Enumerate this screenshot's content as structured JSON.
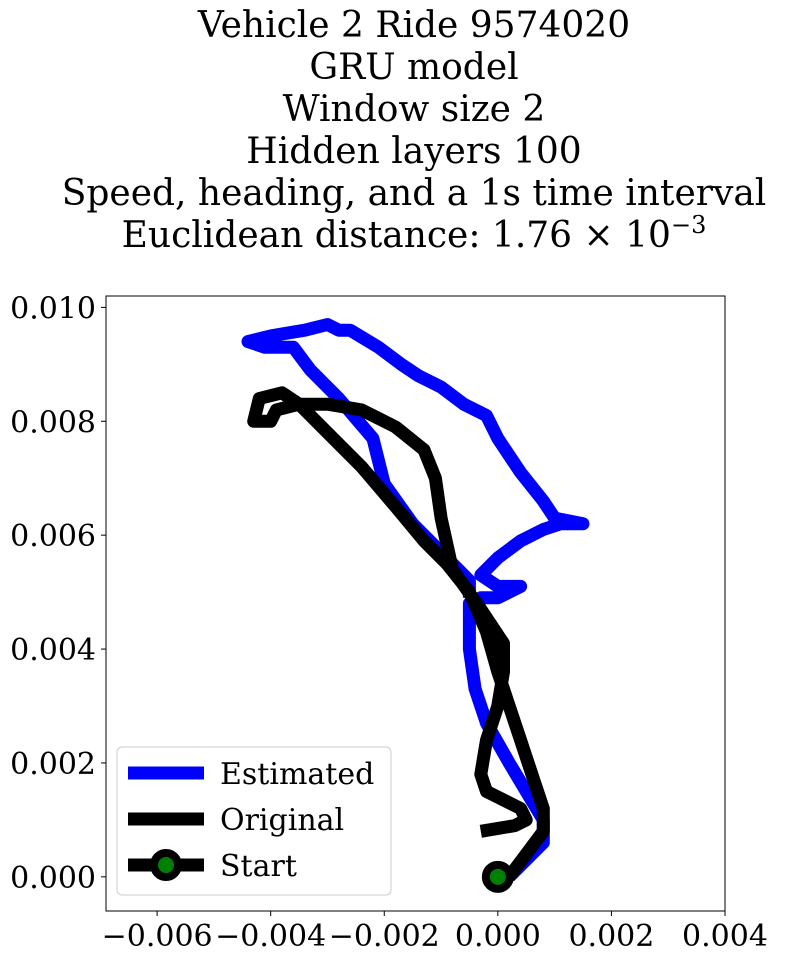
{
  "chart_data": {
    "type": "line",
    "title_lines": [
      "Vehicle 2 Ride 9574020",
      "GRU model",
      "Window size 2",
      "Hidden layers 100",
      "Speed, heading, and a 1s time interval"
    ],
    "title_distance_prefix": "Euclidean distance: 1.76",
    "title_distance_times": "×",
    "title_distance_base": "10",
    "title_distance_exponent": "−3",
    "xlim": [
      -0.0069,
      0.004
    ],
    "ylim": [
      -0.0006,
      0.0102
    ],
    "x_ticks": [
      -0.006,
      -0.004,
      -0.002,
      0.0,
      0.002,
      0.004
    ],
    "x_tick_labels": [
      "−0.006",
      "−0.004",
      "−0.002",
      "0.000",
      "0.002",
      "0.004"
    ],
    "y_ticks": [
      0.0,
      0.002,
      0.004,
      0.006,
      0.008,
      0.01
    ],
    "y_tick_labels": [
      "0.000",
      "0.002",
      "0.004",
      "0.006",
      "0.008",
      "0.010"
    ],
    "grid": false,
    "legend_position": "lower-left",
    "series": [
      {
        "name": "Estimated",
        "color": "#0000ff",
        "points": [
          [
            0.0002,
            0.0
          ],
          [
            0.0005,
            0.0003
          ],
          [
            0.0008,
            0.0006
          ],
          [
            0.0008,
            0.001
          ],
          [
            0.0005,
            0.0015
          ],
          [
            0.0002,
            0.002
          ],
          [
            -0.0002,
            0.0027
          ],
          [
            -0.0004,
            0.0033
          ],
          [
            -0.0005,
            0.004
          ],
          [
            -0.0005,
            0.0048
          ],
          [
            -0.0003,
            0.0049
          ],
          [
            0.0,
            0.0049
          ],
          [
            0.0004,
            0.0051
          ],
          [
            0.0,
            0.0051
          ],
          [
            -0.0003,
            0.0053
          ],
          [
            0.0,
            0.0056
          ],
          [
            0.0004,
            0.0059
          ],
          [
            0.0008,
            0.0061
          ],
          [
            0.0011,
            0.0062
          ],
          [
            0.0015,
            0.0062
          ],
          [
            0.001,
            0.0063
          ],
          [
            0.0008,
            0.0066
          ],
          [
            0.0004,
            0.0071
          ],
          [
            0.0,
            0.0077
          ],
          [
            -0.0002,
            0.0081
          ],
          [
            -0.0006,
            0.0083
          ],
          [
            -0.001,
            0.0086
          ],
          [
            -0.0014,
            0.0088
          ],
          [
            -0.0017,
            0.009
          ],
          [
            -0.0021,
            0.0093
          ],
          [
            -0.0026,
            0.0096
          ],
          [
            -0.0028,
            0.0096
          ],
          [
            -0.003,
            0.0097
          ],
          [
            -0.0034,
            0.0096
          ],
          [
            -0.004,
            0.0095
          ],
          [
            -0.0044,
            0.0094
          ],
          [
            -0.0041,
            0.0093
          ],
          [
            -0.0036,
            0.0093
          ],
          [
            -0.0033,
            0.0089
          ],
          [
            -0.0028,
            0.0084
          ],
          [
            -0.0022,
            0.0077
          ],
          [
            -0.002,
            0.0069
          ],
          [
            -0.0015,
            0.0062
          ],
          [
            -0.0011,
            0.0058
          ],
          [
            -0.0008,
            0.0055
          ],
          [
            -0.0005,
            0.0052
          ],
          [
            -0.0005,
            0.0049
          ]
        ]
      },
      {
        "name": "Original",
        "color": "#000000",
        "points": [
          [
            -0.0003,
            0.0008
          ],
          [
            0.0003,
            0.0009
          ],
          [
            0.0005,
            0.001
          ],
          [
            0.0004,
            0.0012
          ],
          [
            -0.0002,
            0.0015
          ],
          [
            -0.0003,
            0.0018
          ],
          [
            -0.0002,
            0.0024
          ],
          [
            0.0,
            0.003
          ],
          [
            0.0001,
            0.0036
          ],
          [
            0.0001,
            0.0041
          ],
          [
            -0.0003,
            0.0047
          ],
          [
            -0.0008,
            0.0054
          ],
          [
            -0.001,
            0.0063
          ],
          [
            -0.0011,
            0.007
          ],
          [
            -0.0013,
            0.0075
          ],
          [
            -0.0018,
            0.0079
          ],
          [
            -0.0024,
            0.0082
          ],
          [
            -0.003,
            0.0083
          ],
          [
            -0.0035,
            0.0083
          ],
          [
            -0.0039,
            0.0082
          ],
          [
            -0.004,
            0.008
          ],
          [
            -0.0043,
            0.008
          ],
          [
            -0.0042,
            0.0084
          ],
          [
            -0.0038,
            0.0085
          ],
          [
            -0.0035,
            0.0083
          ],
          [
            -0.003,
            0.0078
          ],
          [
            -0.0024,
            0.0072
          ],
          [
            -0.0018,
            0.0065
          ],
          [
            -0.0013,
            0.0059
          ],
          [
            -0.0009,
            0.0055
          ],
          [
            -0.0005,
            0.005
          ],
          [
            -0.0002,
            0.0043
          ],
          [
            0.0,
            0.0036
          ],
          [
            0.0002,
            0.003
          ],
          [
            0.0004,
            0.0024
          ],
          [
            0.0006,
            0.0018
          ],
          [
            0.0008,
            0.0012
          ],
          [
            0.0008,
            0.0008
          ],
          [
            0.0005,
            0.0004
          ],
          [
            0.0002,
            0.0
          ]
        ]
      }
    ],
    "start_marker": {
      "name": "Start",
      "x": 0.0,
      "y": 0.0,
      "fill_color": "#008000",
      "edge_color": "#000000"
    }
  }
}
